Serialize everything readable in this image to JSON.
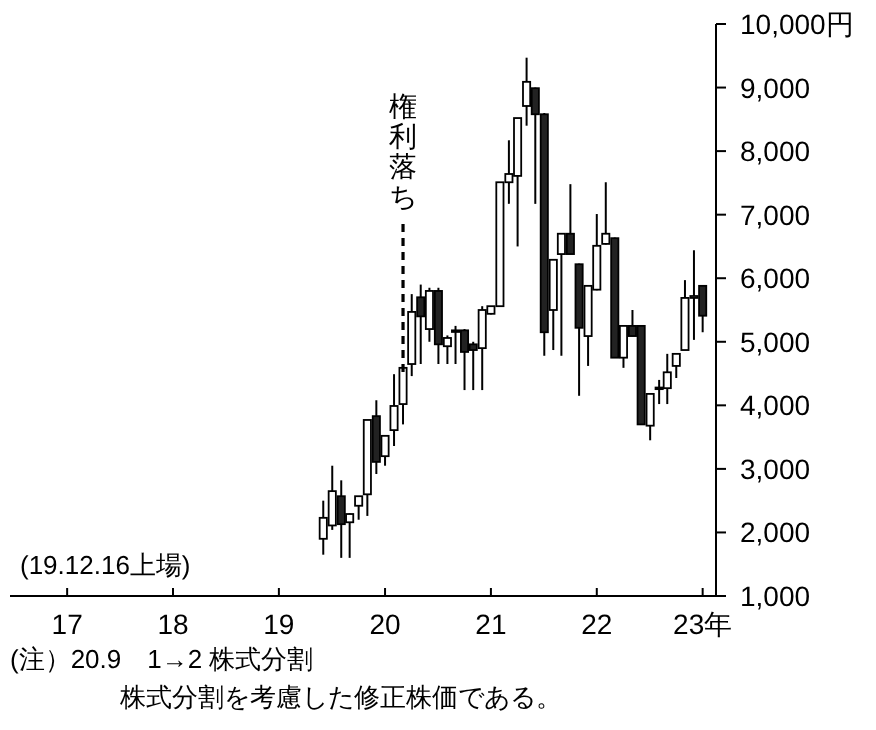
{
  "chart_data": {
    "type": "candlestick",
    "x": [
      "2019-12",
      "2020-01",
      "2020-02",
      "2020-03",
      "2020-04",
      "2020-05",
      "2020-06",
      "2020-07",
      "2020-08",
      "2020-09",
      "2020-10",
      "2020-11",
      "2020-12",
      "2021-01",
      "2021-02",
      "2021-03",
      "2021-04",
      "2021-05",
      "2021-06",
      "2021-07",
      "2021-08",
      "2021-09",
      "2021-10",
      "2021-11",
      "2021-12",
      "2022-01",
      "2022-02",
      "2022-03",
      "2022-04",
      "2022-05",
      "2022-06",
      "2022-07",
      "2022-08",
      "2022-09",
      "2022-10",
      "2022-11",
      "2022-12",
      "2023-01",
      "2023-02",
      "2023-03",
      "2023-04",
      "2023-05",
      "2023-06",
      "2023-07"
    ],
    "ohlc": [
      [
        1900,
        2500,
        1650,
        2230
      ],
      [
        2110,
        3050,
        2040,
        2650
      ],
      [
        2570,
        2820,
        1600,
        2130
      ],
      [
        2160,
        2300,
        1600,
        2290
      ],
      [
        2420,
        2570,
        2200,
        2570
      ],
      [
        2600,
        3770,
        2260,
        3770
      ],
      [
        3830,
        4080,
        2920,
        3110
      ],
      [
        3200,
        3520,
        3050,
        3520
      ],
      [
        3610,
        4490,
        3360,
        3990
      ],
      [
        4020,
        4590,
        3700,
        4590
      ],
      [
        4650,
        5750,
        4460,
        5470
      ],
      [
        5700,
        5900,
        4650,
        5400
      ],
      [
        5200,
        5850,
        5000,
        5800
      ],
      [
        5800,
        5850,
        4650,
        4960
      ],
      [
        4930,
        5100,
        4650,
        5060
      ],
      [
        5180,
        5250,
        4650,
        5160
      ],
      [
        5180,
        5200,
        4240,
        4840
      ],
      [
        4960,
        5000,
        4240,
        4870
      ],
      [
        4900,
        5560,
        4240,
        5500
      ],
      [
        5440,
        5560,
        5430,
        5560
      ],
      [
        5560,
        7510,
        5560,
        7510
      ],
      [
        7510,
        8170,
        7170,
        7640
      ],
      [
        7610,
        8520,
        6500,
        8520
      ],
      [
        8710,
        9470,
        8400,
        9090
      ],
      [
        8990,
        9000,
        7170,
        8580
      ],
      [
        8580,
        8600,
        4780,
        5150
      ],
      [
        5500,
        6290,
        4870,
        6290
      ],
      [
        6380,
        6700,
        4780,
        6700
      ],
      [
        6700,
        7480,
        6380,
        6380
      ],
      [
        6220,
        6230,
        4150,
        5220
      ],
      [
        5090,
        5880,
        4620,
        5880
      ],
      [
        5820,
        7010,
        5810,
        6510
      ],
      [
        6540,
        7510,
        6530,
        6700
      ],
      [
        6630,
        6640,
        4750,
        4750
      ],
      [
        4750,
        5250,
        4590,
        5250
      ],
      [
        5250,
        5500,
        5090,
        5090
      ],
      [
        5250,
        5260,
        3700,
        3700
      ],
      [
        3680,
        4180,
        3450,
        4180
      ],
      [
        4270,
        4400,
        4020,
        4280
      ],
      [
        4270,
        4810,
        4020,
        4520
      ],
      [
        4620,
        4810,
        4430,
        4810
      ],
      [
        4870,
        5970,
        4870,
        5690
      ],
      [
        5690,
        6440,
        5030,
        5720
      ],
      [
        5880,
        5880,
        5150,
        5410
      ]
    ],
    "xlim": [
      "2016-12-16",
      "2023-08-16"
    ],
    "xticks": [
      {
        "value": "2017-07",
        "label": "17"
      },
      {
        "value": "2018-07",
        "label": "18"
      },
      {
        "value": "2019-07",
        "label": "19"
      },
      {
        "value": "2020-07",
        "label": "20"
      },
      {
        "value": "2021-07",
        "label": "21"
      },
      {
        "value": "2022-07",
        "label": "22"
      },
      {
        "value": "2023-07",
        "label": "23年"
      }
    ],
    "ylim": [
      1000,
      10000
    ],
    "yticks": [
      {
        "value": 1000,
        "label": "1,000"
      },
      {
        "value": 2000,
        "label": "2,000"
      },
      {
        "value": 3000,
        "label": "3,000"
      },
      {
        "value": 4000,
        "label": "4,000"
      },
      {
        "value": 5000,
        "label": "5,000"
      },
      {
        "value": 6000,
        "label": "6,000"
      },
      {
        "value": 7000,
        "label": "7,000"
      },
      {
        "value": 8000,
        "label": "8,000"
      },
      {
        "value": 9000,
        "label": "9,000"
      },
      {
        "value": 10000,
        "label": "10,000円"
      }
    ],
    "ref_lines": [
      {
        "axis": "x",
        "value": "2020-09",
        "label": "権利落ち",
        "line_style": "dashed"
      }
    ],
    "annotations": [
      "(19.12.16上場)",
      "(注）20.9　1→2 株式分割",
      "株式分割を考慮した修正株価である。"
    ],
    "grid": false
  }
}
